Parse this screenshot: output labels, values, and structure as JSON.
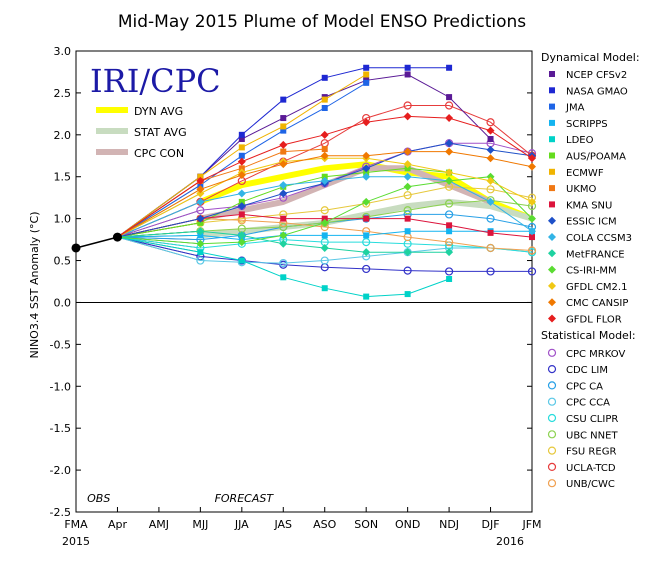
{
  "chart_data": {
    "type": "line",
    "title": "Mid-May 2015 Plume of Model ENSO Predictions",
    "ylabel": "NINO3.4 SST Anomaly (°C)",
    "xlabel": "",
    "x": [
      "FMA",
      "Apr",
      "AMJ",
      "MJJ",
      "JJA",
      "JAS",
      "ASO",
      "SON",
      "OND",
      "NDJ",
      "DJF",
      "JFM"
    ],
    "year_labels": {
      "start": "2015",
      "end": "2016"
    },
    "ylim": [
      -2.5,
      3.0
    ],
    "yticks": [
      "3.0",
      "2.5",
      "2.0",
      "1.5",
      "1.0",
      "0.5",
      "0.0",
      "-0.5",
      "-1.0",
      "-1.5",
      "-2.0",
      "-2.5"
    ],
    "grid": false,
    "logo": "IRI/CPC",
    "annotations": {
      "obs": "OBS",
      "forecast": "FORECAST"
    },
    "observed": {
      "x": [
        "FMA",
        "Apr"
      ],
      "values": [
        0.65,
        0.78
      ]
    },
    "averages": [
      {
        "name": "DYN AVG",
        "color": "#ffff00",
        "values": [
          1.2,
          1.4,
          1.5,
          1.6,
          1.65,
          1.55,
          1.5,
          1.2,
          1.0
        ]
      },
      {
        "name": "STAT AVG",
        "color": "#c8dcc0",
        "values": [
          0.8,
          0.85,
          0.9,
          0.95,
          1.05,
          1.15,
          1.2,
          1.15,
          1.0
        ]
      },
      {
        "name": "CPC CON",
        "color": "#d2b4b4",
        "values": [
          1.0,
          1.1,
          1.2,
          1.4,
          1.6,
          1.6,
          1.4,
          1.2
        ]
      }
    ],
    "legend_groups": {
      "dynamical": "Dynamical Model:",
      "statistical": "Statistical Model:"
    },
    "dynamical": [
      {
        "name": "NCEP CFSv2",
        "color": "#5a1a96",
        "marker": "square",
        "values": [
          1.5,
          1.95,
          2.2,
          2.45,
          2.65,
          2.72,
          2.45,
          1.95
        ]
      },
      {
        "name": "NASA GMAO",
        "color": "#1e28d2",
        "marker": "square",
        "values": [
          1.5,
          2.0,
          2.42,
          2.68,
          2.8,
          2.8,
          2.8
        ]
      },
      {
        "name": "JMA",
        "color": "#1e64e6",
        "marker": "square",
        "values": [
          1.4,
          1.75,
          2.05,
          2.32,
          2.62
        ]
      },
      {
        "name": "SCRIPPS",
        "color": "#14b4f0",
        "marker": "square",
        "values": [
          0.8,
          0.75,
          0.8,
          0.8,
          0.8,
          0.85,
          0.85,
          0.85,
          0.85
        ]
      },
      {
        "name": "LDEO",
        "color": "#00d2c8",
        "marker": "square",
        "values": [
          0.6,
          0.5,
          0.3,
          0.17,
          0.07,
          0.1,
          0.28
        ]
      },
      {
        "name": "AUS/POAMA",
        "color": "#64dc1e",
        "marker": "square",
        "values": [
          0.95,
          1.2,
          1.38,
          1.5,
          1.55,
          1.6,
          1.55
        ]
      },
      {
        "name": "ECMWF",
        "color": "#f0b400",
        "marker": "square",
        "values": [
          1.5,
          1.85,
          2.1,
          2.42,
          2.72
        ]
      },
      {
        "name": "UKMO",
        "color": "#f07814",
        "marker": "square",
        "values": [
          1.45,
          1.6,
          1.8,
          1.83
        ]
      },
      {
        "name": "KMA SNU",
        "color": "#dc143c",
        "marker": "square",
        "values": [
          1.0,
          1.05,
          1.0,
          1.0,
          1.0,
          1.0,
          0.92,
          0.83,
          0.78
        ]
      },
      {
        "name": "ESSIC ICM",
        "color": "#1e50c8",
        "marker": "diamond",
        "values": [
          1.0,
          1.15,
          1.3,
          1.42,
          1.6,
          1.8,
          1.9,
          1.82,
          1.75
        ]
      },
      {
        "name": "COLA CCSM3",
        "color": "#32b4e6",
        "marker": "diamond",
        "values": [
          1.2,
          1.3,
          1.4,
          1.45,
          1.5,
          1.5,
          1.45,
          1.2,
          0.85
        ]
      },
      {
        "name": "MetFRANCE",
        "color": "#1ed2a0",
        "marker": "diamond",
        "values": [
          0.85,
          0.8,
          0.7,
          0.65,
          0.6,
          0.6,
          0.6
        ]
      },
      {
        "name": "CS-IRI-MM",
        "color": "#5adc32",
        "marker": "diamond",
        "values": [
          0.7,
          0.72,
          0.8,
          0.95,
          1.2,
          1.38,
          1.45,
          1.5,
          1.0
        ]
      },
      {
        "name": "GFDL CM2.1",
        "color": "#f0c814",
        "marker": "diamond",
        "values": [
          1.3,
          1.55,
          1.68,
          1.72,
          1.72,
          1.65,
          1.55,
          1.45,
          1.2
        ]
      },
      {
        "name": "CMC CANSIP",
        "color": "#f07800",
        "marker": "diamond",
        "values": [
          1.35,
          1.52,
          1.65,
          1.75,
          1.75,
          1.8,
          1.8,
          1.72,
          1.62
        ]
      },
      {
        "name": "GFDL FLOR",
        "color": "#e61e1e",
        "marker": "diamond",
        "values": [
          1.45,
          1.68,
          1.88,
          2.0,
          2.15,
          2.22,
          2.2,
          2.05,
          1.72
        ]
      }
    ],
    "statistical": [
      {
        "name": "CPC MRKOV",
        "color": "#a050c8",
        "marker": "circle",
        "values": [
          1.1,
          1.15,
          1.25,
          1.42,
          1.62,
          1.8,
          1.9,
          1.9,
          1.78
        ]
      },
      {
        "name": "CDC LIM",
        "color": "#3232c8",
        "marker": "circle",
        "values": [
          0.55,
          0.5,
          0.45,
          0.42,
          0.4,
          0.38,
          0.37,
          0.37,
          0.37
        ]
      },
      {
        "name": "CPC CA",
        "color": "#28a0e6",
        "marker": "circle",
        "values": [
          0.75,
          0.8,
          0.9,
          0.95,
          1.0,
          1.05,
          1.05,
          1.0,
          0.9
        ]
      },
      {
        "name": "CPC CCA",
        "color": "#5ac8e6",
        "marker": "circle",
        "values": [
          0.5,
          0.48,
          0.47,
          0.5,
          0.55,
          0.6,
          0.65,
          0.65,
          0.6
        ]
      },
      {
        "name": "CSU CLIPR",
        "color": "#28dcdc",
        "marker": "circle",
        "values": [
          0.65,
          0.7,
          0.75,
          0.72,
          0.72,
          0.7,
          0.68,
          0.65,
          0.6
        ]
      },
      {
        "name": "UBC NNET",
        "color": "#8cd250",
        "marker": "circle",
        "values": [
          0.85,
          0.88,
          0.9,
          0.95,
          1.02,
          1.1,
          1.18,
          1.22,
          1.15
        ]
      },
      {
        "name": "FSU REGR",
        "color": "#e6c83c",
        "marker": "circle",
        "values": [
          0.95,
          1.0,
          1.05,
          1.1,
          1.18,
          1.28,
          1.38,
          1.35,
          1.25
        ]
      },
      {
        "name": "UCLA-TCD",
        "color": "#e63c3c",
        "marker": "circle",
        "values": [
          1.2,
          1.45,
          1.68,
          1.9,
          2.2,
          2.35,
          2.35,
          2.15,
          1.75
        ]
      },
      {
        "name": "UNB/CWC",
        "color": "#f0a050",
        "marker": "circle",
        "values": [
          1.0,
          0.98,
          0.95,
          0.9,
          0.85,
          0.78,
          0.72,
          0.65,
          0.62
        ]
      }
    ]
  }
}
